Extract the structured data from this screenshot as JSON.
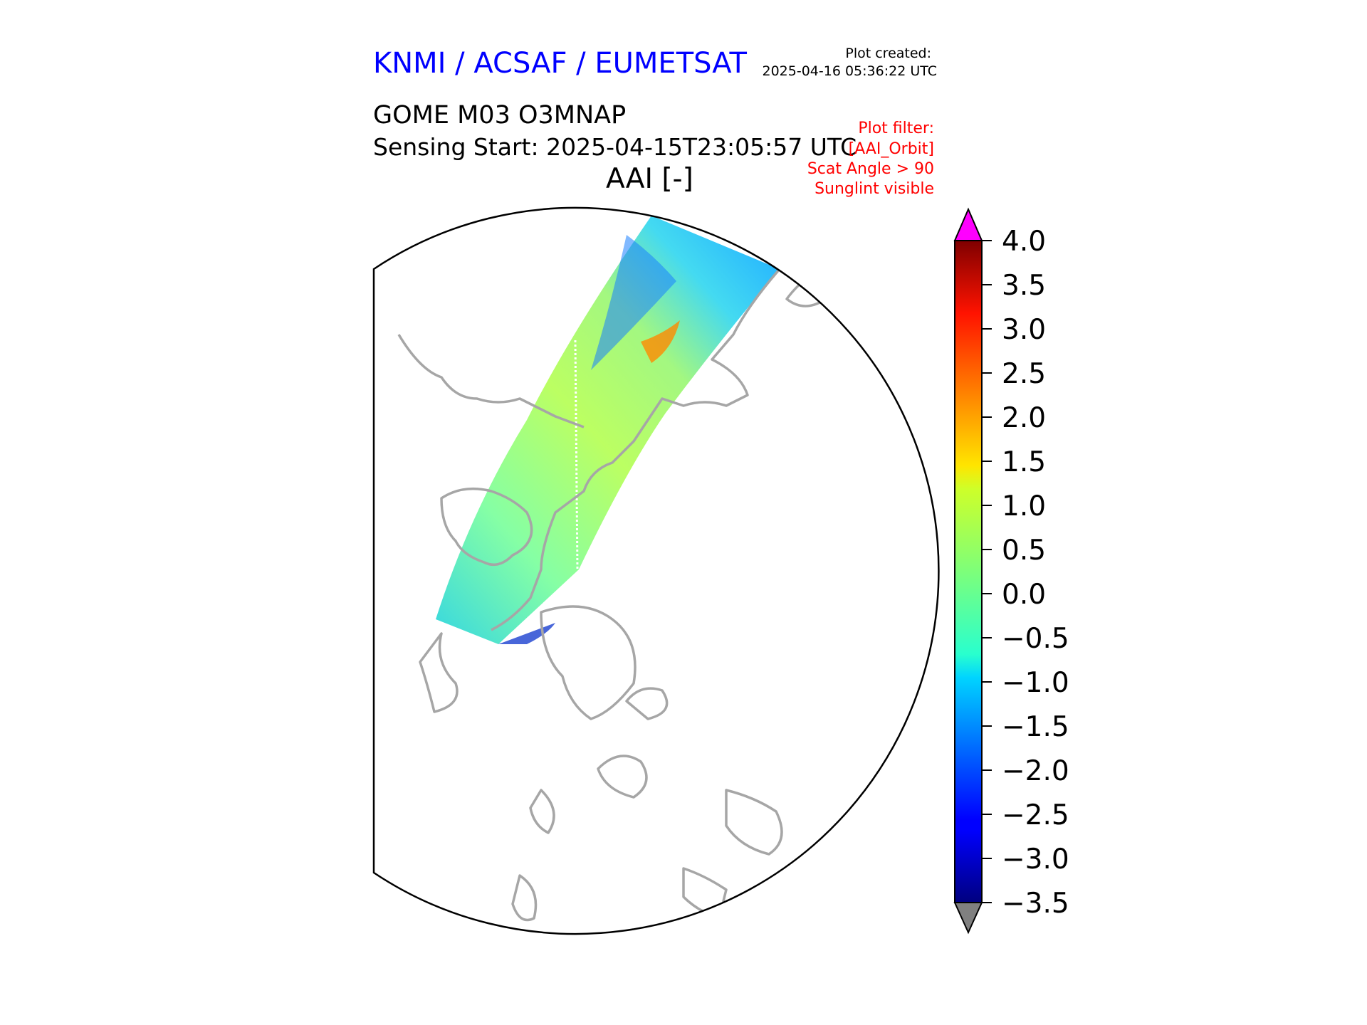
{
  "header": {
    "org": "KNMI / ACSAF / EUMETSAT",
    "created_label": "Plot created:",
    "created_value": "2025-04-16 05:36:22 UTC",
    "product": "GOME M03 O3MNAP",
    "sensing": "Sensing Start: 2025-04-15T23:05:57 UTC",
    "variable": "AAI [-]"
  },
  "filters": [
    "Plot filter:",
    "[AAI_Orbit]",
    "Scat Angle > 90",
    "Sunglint visible"
  ],
  "colors": {
    "title": "#0000ff",
    "filter": "#ff0000",
    "coastline": "#a6a6a6",
    "over_max": "#ff00ff",
    "under_min": "#808080"
  },
  "colorbar": {
    "colormap": "jet",
    "min": -3.5,
    "max": 4.0,
    "tick_labels": [
      "4.0",
      "3.5",
      "3.0",
      "2.5",
      "2.0",
      "1.5",
      "1.0",
      "0.5",
      "0.0",
      "−0.5",
      "−1.0",
      "−1.5",
      "−2.0",
      "−2.5",
      "−3.0",
      "−3.5"
    ]
  },
  "map": {
    "projection": "north polar stereographic",
    "swath_variable": "AAI"
  }
}
